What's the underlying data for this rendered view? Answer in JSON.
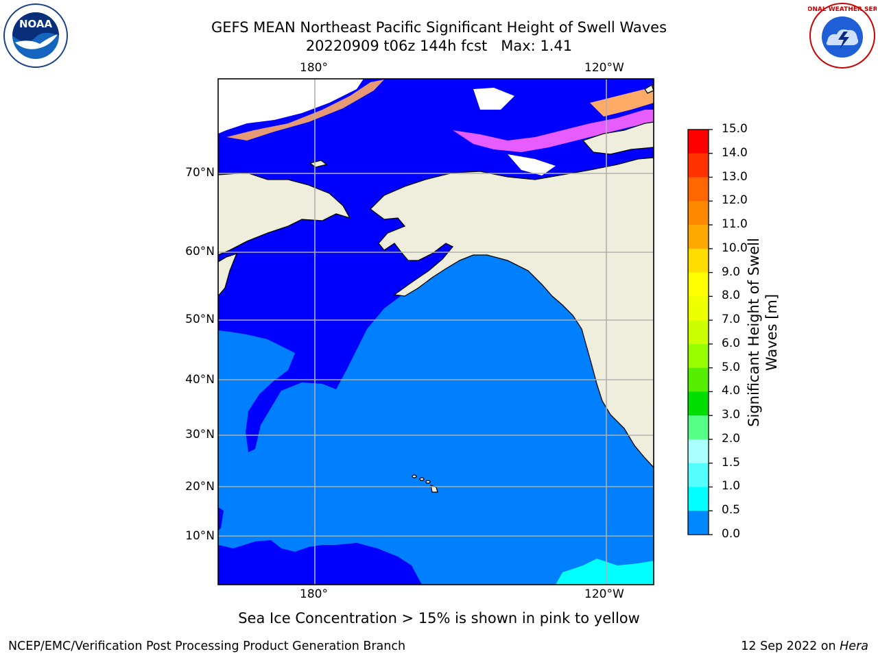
{
  "title": {
    "line1": "GEFS MEAN Northeast Pacific Significant Height of Swell Waves",
    "line2": "20220909 t06z 144h fcst   Max: 1.41"
  },
  "map": {
    "projection": "lat-lon",
    "top_lon_labels": [
      "180°",
      "120°W"
    ],
    "bottom_lon_labels": [
      "180°",
      "120°W"
    ],
    "lat_labels": [
      "70°N",
      "60°N",
      "50°N",
      "40°N",
      "30°N",
      "20°N",
      "10°N"
    ],
    "colors": {
      "land": "#efeedd",
      "ocean_low": "#0000ff",
      "ocean_mid": "#0080ff",
      "ocean_cyan": "#00ffff",
      "ice_pink": "#ff66ff",
      "ice_orange": "#ffaa66",
      "gridline": "#b0b0b0"
    }
  },
  "colorbar": {
    "label": "Significant Height of Swell Waves [m]",
    "ticks": [
      "15.0",
      "14.0",
      "13.0",
      "12.0",
      "11.0",
      "10.0",
      "9.0",
      "8.0",
      "7.0",
      "6.0",
      "5.0",
      "4.0",
      "3.0",
      "2.0",
      "1.5",
      "1.0",
      "0.5",
      "0.0"
    ],
    "colors": [
      "#ff0000",
      "#ff3300",
      "#ff6600",
      "#ff8800",
      "#ffaa00",
      "#ffdd00",
      "#ffff00",
      "#eeff00",
      "#ccff00",
      "#99ff00",
      "#55ee00",
      "#00dd00",
      "#55ff88",
      "#aaffff",
      "#55ffff",
      "#00ffff",
      "#0088ff",
      "#0000ff"
    ]
  },
  "note": "Sea Ice Concentration > 15% is shown in pink to yellow",
  "footer": {
    "left": "NCEP/EMC/Verification Post Processing Product Generation Branch",
    "right_date": "12 Sep 2022 on ",
    "right_host": "Hera"
  },
  "logos": {
    "left": "NOAA",
    "right": "NATIONAL WEATHER SERVICE"
  }
}
